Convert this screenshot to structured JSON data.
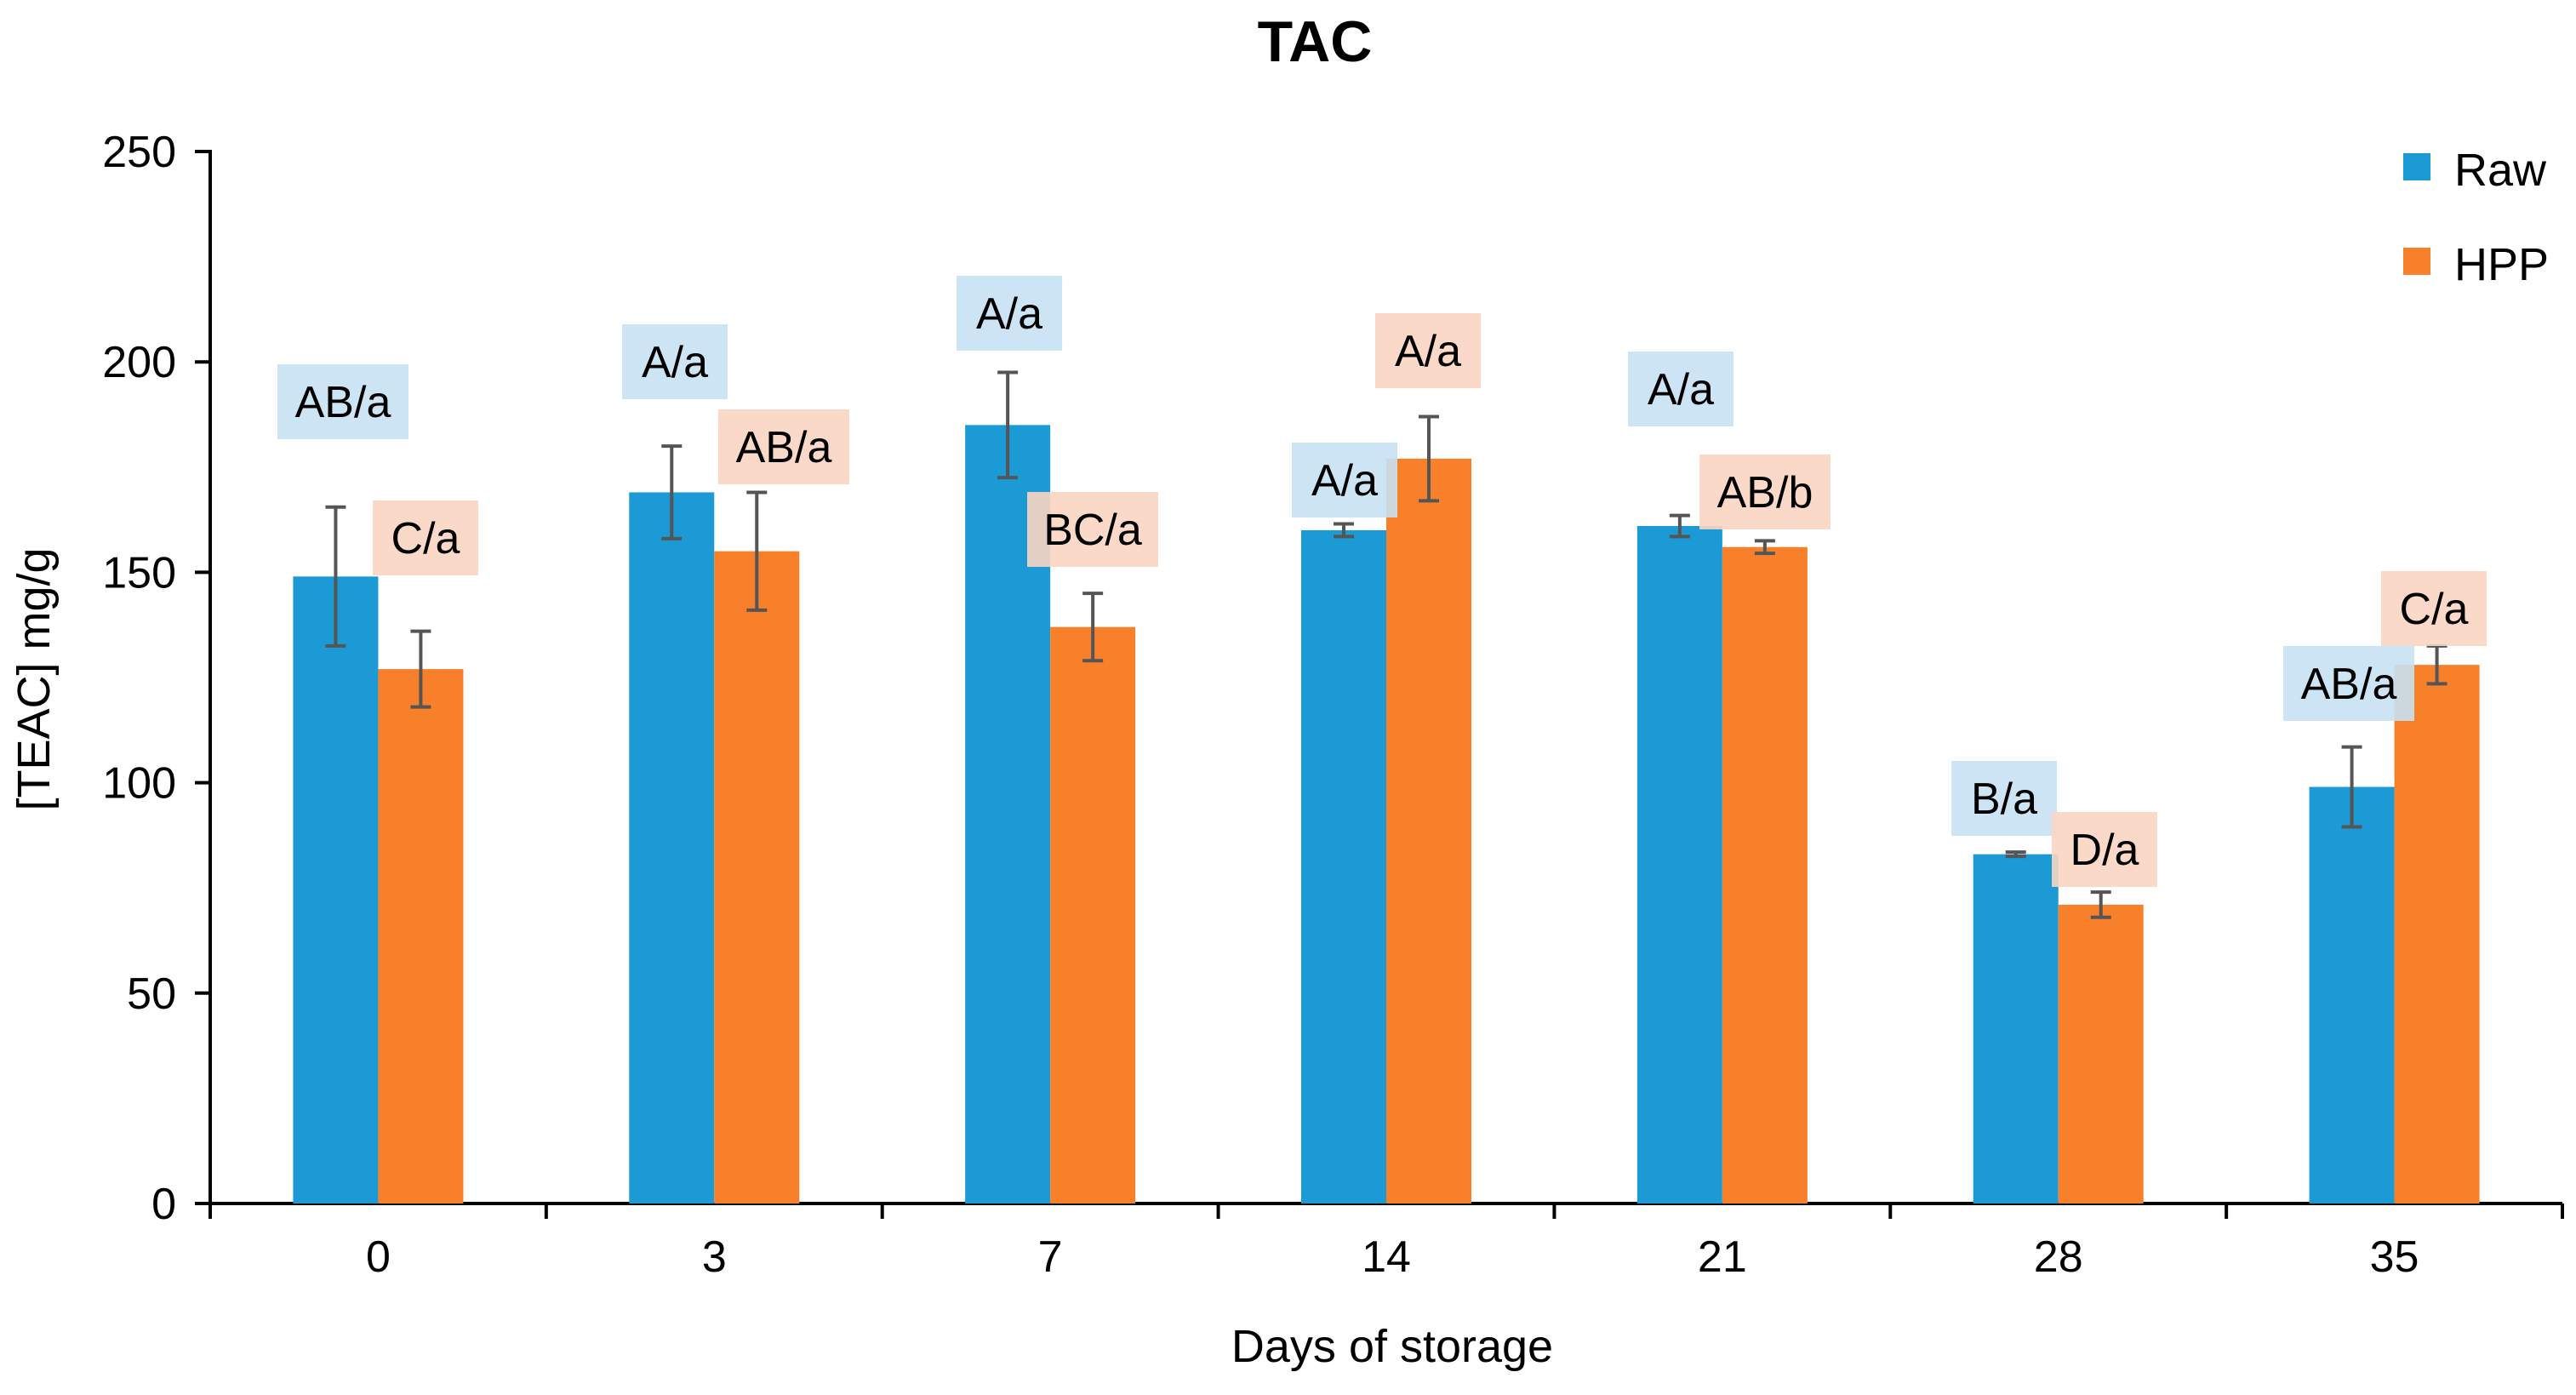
{
  "chart_data": {
    "type": "bar",
    "title": "TAC",
    "xlabel": "Days of storage",
    "ylabel": "[TEAC] mg/g",
    "ylim": [
      0,
      250
    ],
    "yticks": [
      0,
      50,
      100,
      150,
      200,
      250
    ],
    "categories": [
      "0",
      "3",
      "7",
      "14",
      "21",
      "28",
      "35"
    ],
    "grid": false,
    "legend_position": "top-right",
    "series": [
      {
        "name": "Raw",
        "color": "#1b9ad6",
        "label_bg": "#c7e1f2",
        "values": [
          149,
          169,
          185,
          160,
          161,
          83,
          99
        ],
        "errors": [
          16.5,
          11,
          12.5,
          1.5,
          2.5,
          0.5,
          9.5
        ],
        "labels": [
          "AB/a",
          "A/a",
          "A/a",
          "A/a",
          "A/a",
          "B/a",
          "AB/a"
        ]
      },
      {
        "name": "HPP",
        "color": "#f9802a",
        "label_bg": "#fbd5c3",
        "values": [
          127,
          155,
          137,
          177,
          156,
          71,
          128
        ],
        "errors": [
          9,
          14,
          8,
          10,
          1.5,
          3,
          4.5
        ],
        "labels": [
          "C/a",
          "AB/a",
          "BC/a",
          "A/a",
          "AB/b",
          "D/a",
          "C/a"
        ]
      }
    ]
  }
}
